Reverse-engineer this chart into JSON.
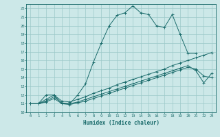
{
  "xlabel": "Humidex (Indice chaleur)",
  "xlim": [
    -0.5,
    23.5
  ],
  "ylim": [
    10,
    22.5
  ],
  "xticks": [
    0,
    1,
    2,
    3,
    4,
    5,
    6,
    7,
    8,
    9,
    10,
    11,
    12,
    13,
    14,
    15,
    16,
    17,
    18,
    19,
    20,
    21,
    22,
    23
  ],
  "yticks": [
    10,
    11,
    12,
    13,
    14,
    15,
    16,
    17,
    18,
    19,
    20,
    21,
    22
  ],
  "bg_color": "#cce8e8",
  "grid_color": "#9cc9c9",
  "line_color": "#1a6b6b",
  "series": [
    {
      "x": [
        0,
        1,
        2,
        3,
        4,
        5,
        6,
        7,
        8,
        9,
        10,
        11,
        12,
        13,
        14,
        15,
        16,
        17,
        18,
        19,
        20,
        21
      ],
      "y": [
        11,
        11,
        12,
        12,
        11,
        11,
        12,
        13.3,
        15.8,
        18,
        20,
        21.2,
        21.5,
        22.3,
        21.5,
        21.3,
        20,
        19.8,
        21.3,
        19,
        16.8,
        16.8
      ]
    },
    {
      "x": [
        0,
        1,
        2,
        3,
        4,
        5,
        6,
        7,
        8,
        9,
        10,
        11,
        12,
        13,
        14,
        15,
        16,
        17,
        18,
        19,
        20,
        21,
        22,
        23
      ],
      "y": [
        11,
        11,
        11.5,
        12,
        11.3,
        11.2,
        11.5,
        11.8,
        12.2,
        12.5,
        12.8,
        13.2,
        13.5,
        13.8,
        14.1,
        14.4,
        14.7,
        15.0,
        15.4,
        15.7,
        16.0,
        16.3,
        16.6,
        16.9
      ]
    },
    {
      "x": [
        0,
        1,
        2,
        3,
        4,
        5,
        6,
        7,
        8,
        9,
        10,
        11,
        12,
        13,
        14,
        15,
        16,
        17,
        18,
        19,
        20,
        21,
        22,
        23
      ],
      "y": [
        11,
        11,
        11.3,
        11.8,
        11.1,
        11.0,
        11.2,
        11.5,
        11.8,
        12.1,
        12.4,
        12.7,
        13.0,
        13.3,
        13.6,
        13.9,
        14.2,
        14.5,
        14.8,
        15.1,
        15.4,
        14.8,
        13.4,
        14.5
      ]
    },
    {
      "x": [
        0,
        1,
        2,
        3,
        4,
        5,
        6,
        7,
        8,
        9,
        10,
        11,
        12,
        13,
        14,
        15,
        16,
        17,
        18,
        19,
        20,
        21,
        22,
        23
      ],
      "y": [
        11,
        11,
        11.2,
        11.6,
        11.0,
        10.9,
        11.1,
        11.3,
        11.6,
        11.9,
        12.2,
        12.5,
        12.8,
        13.1,
        13.4,
        13.7,
        14.0,
        14.3,
        14.6,
        14.9,
        15.2,
        15.0,
        14.2,
        14.0
      ]
    }
  ]
}
